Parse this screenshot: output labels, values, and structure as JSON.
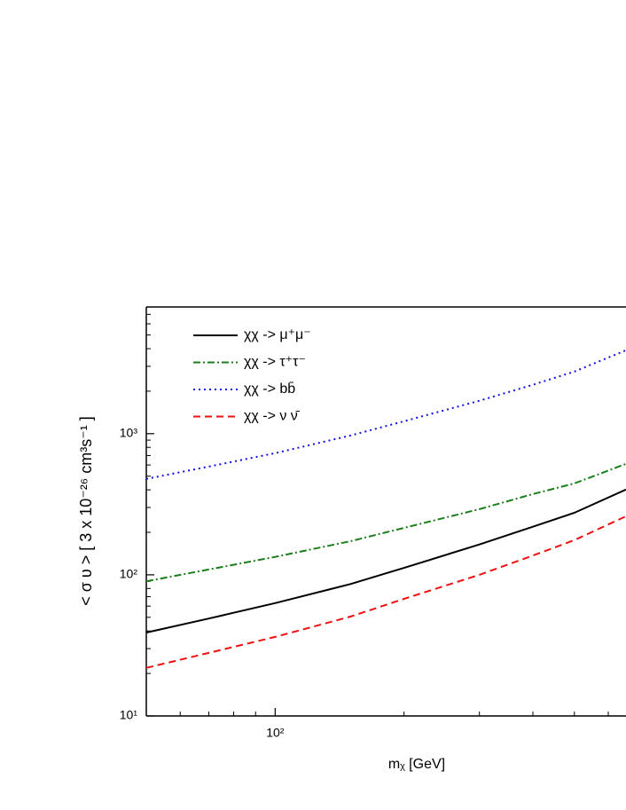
{
  "chart_data": {
    "type": "line",
    "xlabel": "mᵪ [GeV]",
    "ylabel": "< σ υ > [ 3 x 10⁻²⁶ cm³s⁻¹ ]",
    "xscale": "log",
    "yscale": "log",
    "xlim": [
      50,
      660
    ],
    "ylim": [
      10,
      7900
    ],
    "xticks": [
      {
        "value": 100,
        "label": "10²"
      }
    ],
    "xminorticks": [
      60,
      70,
      80,
      90,
      200,
      300,
      400,
      500,
      600
    ],
    "yticks": [
      {
        "value": 10,
        "label": "10¹"
      },
      {
        "value": 100,
        "label": "10²"
      },
      {
        "value": 1000,
        "label": "10³"
      }
    ],
    "yminorticks": [
      20,
      30,
      40,
      50,
      60,
      70,
      80,
      90,
      200,
      300,
      400,
      500,
      600,
      700,
      800,
      900,
      2000,
      3000,
      4000,
      5000,
      6000,
      7000
    ],
    "legend": "upper left",
    "x": [
      50,
      70,
      100,
      150,
      200,
      300,
      400,
      500,
      660
    ],
    "series": [
      {
        "name": "χχ -> μ⁺μ⁻",
        "color": "#000000",
        "style": "solid",
        "values": [
          39,
          49,
          63,
          86,
          112,
          164,
          219,
          275,
          402
        ]
      },
      {
        "name": "χχ -> τ⁺τ⁻",
        "color": "#1a7f1a",
        "style": "dashdot",
        "values": [
          90,
          109,
          134,
          173,
          215,
          292,
          373,
          444,
          611
        ]
      },
      {
        "name": "χχ -> bb̄",
        "color": "#1010e0",
        "style": "dotted",
        "values": [
          478,
          585,
          727,
          970,
          1225,
          1710,
          2220,
          2756,
          3900
        ]
      },
      {
        "name": "χχ -> ν ν̄",
        "color": "#ee1111",
        "style": "dashed",
        "values": [
          21.9,
          28,
          36.3,
          50.6,
          67.6,
          100,
          137,
          176,
          260
        ]
      }
    ]
  }
}
